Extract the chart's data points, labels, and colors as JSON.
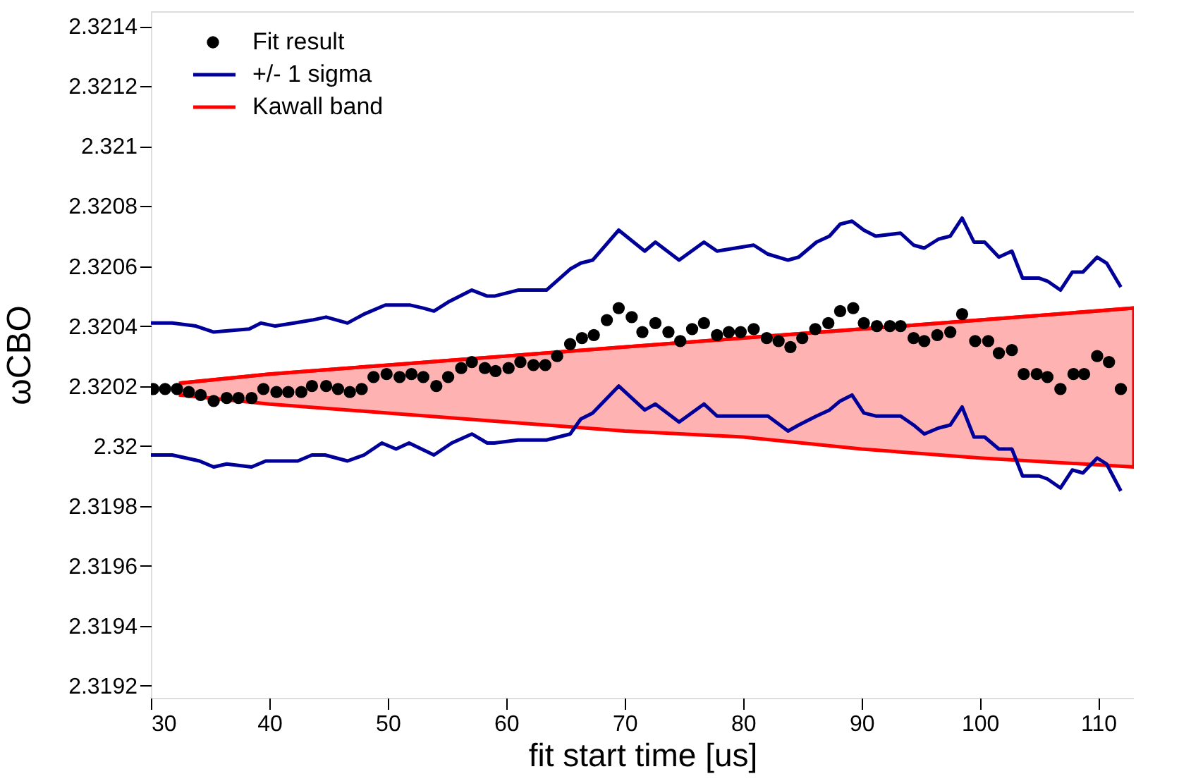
{
  "chart_data": {
    "type": "scatter",
    "xlabel": "fit start time [us]",
    "ylabel": "ωCBO",
    "xlim": [
      30,
      113
    ],
    "ylim": [
      2.31916,
      2.32145
    ],
    "xticks": [
      30,
      40,
      50,
      60,
      70,
      80,
      90,
      100,
      110
    ],
    "yticks": [
      2.3192,
      2.3194,
      2.3196,
      2.3198,
      2.32,
      2.3202,
      2.3204,
      2.3206,
      2.3208,
      2.321,
      2.3212,
      2.3214
    ],
    "grid": false,
    "legend": "top left",
    "series": [
      {
        "name": "Kawall band",
        "type": "line",
        "color": "#ff0000",
        "x": [
          32.5,
          40,
          50,
          60,
          70,
          80,
          90,
          100,
          113
        ],
        "values": [
          2.32021,
          2.32024,
          2.32027,
          2.3203,
          2.32033,
          2.32036,
          2.32039,
          2.32042,
          2.32046
        ],
        "lower": [
          2.32017,
          2.32014,
          2.32011,
          2.32008,
          2.32005,
          2.32003,
          2.31999,
          2.31996,
          2.31993
        ],
        "upper": [
          2.32021,
          2.32024,
          2.32027,
          2.3203,
          2.32033,
          2.32036,
          2.32039,
          2.32042,
          2.32046
        ]
      },
      {
        "name": "+/- 1 sigma",
        "type": "line",
        "color": "#000099",
        "x": [
          30,
          31.8,
          33.8,
          35.3,
          38.3,
          39.3,
          40.5,
          42.1,
          43.6,
          44.8,
          46.6,
          48.0,
          49.8,
          51.9,
          53.0,
          53.9,
          55.1,
          57.1,
          58.4,
          59.0,
          61.0,
          63.4,
          65.4,
          66.3,
          67.3,
          69.5,
          71.7,
          72.6,
          74.6,
          76.7,
          77.8,
          80.9,
          82.1,
          83.8,
          84.7,
          86.2,
          87.3,
          88.2,
          89.2,
          90.2,
          91.2,
          93.3,
          94.4,
          95.3,
          96.5,
          97.5,
          98.5,
          99.5,
          100.4,
          101.6,
          102.7,
          103.6,
          105.0,
          105.7,
          106.8,
          107.8,
          108.7,
          109.9,
          110.7,
          111.9
        ],
        "values": [
          2.32041,
          2.32041,
          2.3204,
          2.32038,
          2.32039,
          2.32041,
          2.3204,
          2.32041,
          2.32042,
          2.32043,
          2.32041,
          2.32044,
          2.32047,
          2.32047,
          2.32046,
          2.32045,
          2.32048,
          2.32052,
          2.3205,
          2.3205,
          2.32052,
          2.32052,
          2.32059,
          2.32061,
          2.32062,
          2.32072,
          2.32065,
          2.32068,
          2.32062,
          2.32068,
          2.32065,
          2.32067,
          2.32064,
          2.32062,
          2.32063,
          2.32068,
          2.3207,
          2.32074,
          2.32075,
          2.32072,
          2.3207,
          2.32071,
          2.32067,
          2.32066,
          2.32069,
          2.3207,
          2.32076,
          2.32068,
          2.32068,
          2.32063,
          2.32065,
          2.32056,
          2.32056,
          2.32055,
          2.32052,
          2.32058,
          2.32058,
          2.32063,
          2.32061,
          2.32053
        ]
      },
      {
        "type": "line",
        "color": "#000099",
        "x": [
          30,
          31.8,
          34.1,
          35.3,
          36.4,
          38.5,
          39.7,
          42.4,
          43.6,
          44.7,
          46.6,
          48.0,
          49.5,
          50.7,
          51.8,
          53.9,
          55.4,
          57.1,
          58.4,
          59.0,
          61.0,
          63.4,
          65.4,
          66.3,
          67.3,
          69.5,
          71.7,
          72.6,
          74.6,
          76.7,
          77.8,
          80.9,
          82.1,
          83.8,
          84.7,
          86.2,
          87.3,
          88.2,
          89.2,
          90.2,
          91.2,
          93.3,
          94.4,
          95.3,
          96.5,
          97.5,
          98.5,
          99.5,
          100.4,
          101.6,
          102.7,
          103.6,
          105.0,
          105.7,
          106.8,
          107.8,
          108.7,
          109.9,
          110.7,
          111.9
        ],
        "values": [
          2.31997,
          2.31997,
          2.31995,
          2.31993,
          2.31994,
          2.31993,
          2.31995,
          2.31995,
          2.31997,
          2.31997,
          2.31995,
          2.31997,
          2.32001,
          2.31999,
          2.32001,
          2.31997,
          2.32001,
          2.32004,
          2.32001,
          2.32001,
          2.32002,
          2.32002,
          2.32004,
          2.32009,
          2.32011,
          2.3202,
          2.32012,
          2.32014,
          2.32008,
          2.32014,
          2.3201,
          2.3201,
          2.3201,
          2.32005,
          2.32007,
          2.3201,
          2.32012,
          2.32015,
          2.32017,
          2.32011,
          2.3201,
          2.3201,
          2.32007,
          2.32004,
          2.32006,
          2.32007,
          2.32013,
          2.32003,
          2.32003,
          2.31999,
          2.31999,
          2.3199,
          2.3199,
          2.31989,
          2.31986,
          2.31992,
          2.31991,
          2.31996,
          2.31994,
          2.31985
        ]
      },
      {
        "name": "Fit result",
        "type": "scatter",
        "color": "#000000",
        "marker": "circle",
        "x": [
          30.2,
          31.2,
          32.2,
          33.2,
          34.2,
          35.3,
          36.4,
          37.4,
          38.5,
          39.5,
          40.6,
          41.6,
          42.7,
          43.6,
          44.8,
          45.8,
          46.8,
          47.8,
          48.8,
          49.9,
          51.0,
          52.0,
          53.0,
          54.1,
          55.1,
          56.2,
          57.1,
          58.2,
          59.1,
          60.2,
          61.2,
          62.3,
          63.3,
          64.3,
          65.4,
          66.4,
          67.4,
          68.5,
          69.5,
          70.6,
          71.5,
          72.6,
          73.7,
          74.7,
          75.7,
          76.7,
          77.8,
          78.8,
          79.8,
          80.9,
          82.0,
          83.0,
          84.0,
          85.0,
          86.1,
          87.2,
          88.2,
          89.3,
          90.2,
          91.3,
          92.4,
          93.3,
          94.4,
          95.3,
          96.4,
          97.5,
          98.5,
          99.6,
          100.7,
          101.6,
          102.7,
          103.7,
          104.8,
          105.7,
          106.8,
          107.9,
          108.8,
          109.9,
          110.9,
          111.9
        ],
        "values": [
          2.32019,
          2.32019,
          2.32019,
          2.32018,
          2.32017,
          2.32015,
          2.32016,
          2.32016,
          2.32016,
          2.32019,
          2.32018,
          2.32018,
          2.32018,
          2.3202,
          2.3202,
          2.32019,
          2.32018,
          2.32019,
          2.32023,
          2.32024,
          2.32023,
          2.32024,
          2.32023,
          2.3202,
          2.32023,
          2.32026,
          2.32028,
          2.32026,
          2.32025,
          2.32026,
          2.32028,
          2.32027,
          2.32027,
          2.3203,
          2.32034,
          2.32036,
          2.32037,
          2.32042,
          2.32046,
          2.32043,
          2.32038,
          2.32041,
          2.32038,
          2.32035,
          2.32039,
          2.32041,
          2.32037,
          2.32038,
          2.32038,
          2.32039,
          2.32036,
          2.32035,
          2.32033,
          2.32036,
          2.32039,
          2.32041,
          2.32045,
          2.32046,
          2.32041,
          2.3204,
          2.3204,
          2.3204,
          2.32036,
          2.32035,
          2.32037,
          2.32038,
          2.32044,
          2.32035,
          2.32035,
          2.32031,
          2.32032,
          2.32024,
          2.32024,
          2.32023,
          2.32019,
          2.32024,
          2.32024,
          2.3203,
          2.32028,
          2.32019
        ]
      }
    ]
  }
}
